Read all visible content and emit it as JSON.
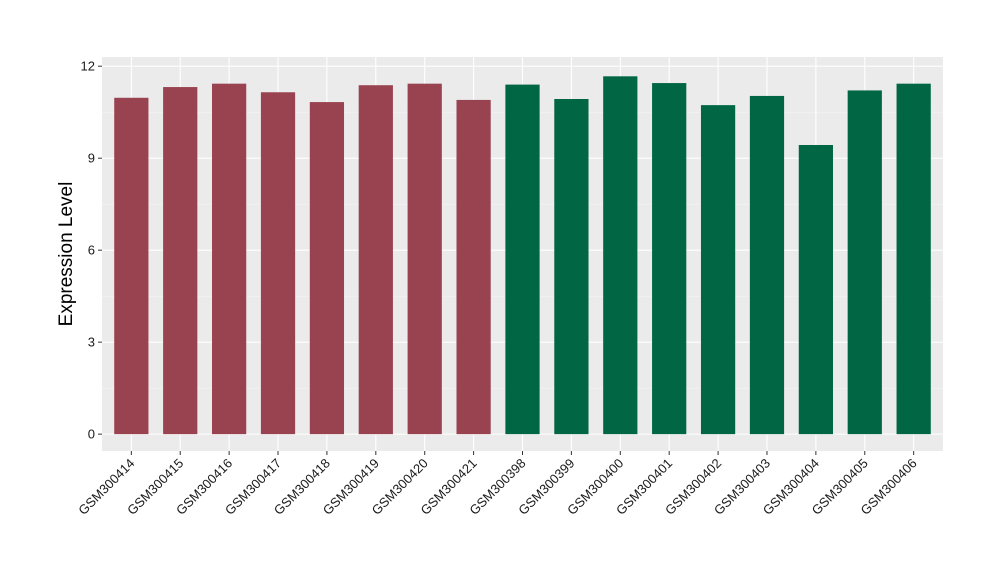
{
  "chart_data": {
    "type": "bar",
    "title": "",
    "xlabel": "",
    "ylabel": "Expression Level",
    "ylim": [
      -0.55,
      12.3
    ],
    "yticks": [
      0,
      3,
      6,
      9,
      12
    ],
    "grid": true,
    "legend": "none",
    "categories": [
      "GSM300414",
      "GSM300415",
      "GSM300416",
      "GSM300417",
      "GSM300418",
      "GSM300419",
      "GSM300420",
      "GSM300421",
      "GSM300398",
      "GSM300399",
      "GSM300400",
      "GSM300401",
      "GSM300402",
      "GSM300403",
      "GSM300404",
      "GSM300405",
      "GSM300406"
    ],
    "values": [
      10.97,
      11.32,
      11.43,
      11.15,
      10.83,
      11.38,
      11.43,
      10.9,
      11.4,
      10.93,
      11.67,
      11.45,
      10.73,
      11.03,
      9.43,
      11.21,
      11.43
    ],
    "bar_colors": [
      "#9A4350",
      "#9A4350",
      "#9A4350",
      "#9A4350",
      "#9A4350",
      "#9A4350",
      "#9A4350",
      "#9A4350",
      "#006644",
      "#006644",
      "#006644",
      "#006644",
      "#006644",
      "#006644",
      "#006644",
      "#006644",
      "#006644"
    ]
  }
}
